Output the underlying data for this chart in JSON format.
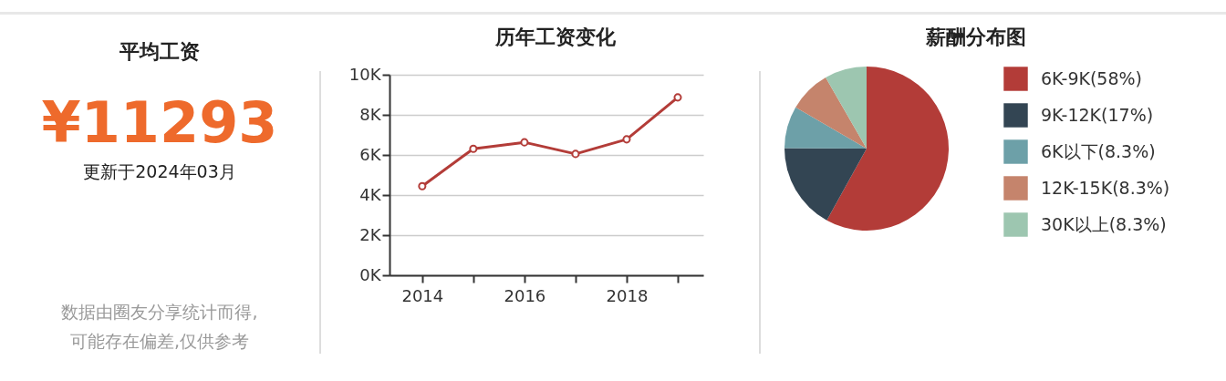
{
  "chart_data": [
    {
      "type": "other",
      "title": "平均工资",
      "annotations": [
        "¥11293",
        "更新于2024年03月",
        "数据由圈友分享统计而得,\n可能存在偏差,仅供参考"
      ]
    },
    {
      "type": "line",
      "title": "历年工资变化",
      "x": [
        2014,
        2015,
        2016,
        2017,
        2018,
        2019
      ],
      "series": [
        {
          "color": "#b33c38",
          "values": [
            4440,
            6310,
            6630,
            6050,
            6780,
            8870
          ]
        }
      ],
      "xlim": [
        2013.36,
        2019.5
      ],
      "xticks": [
        2014,
        {
          "value": 2015,
          "label": null
        },
        2016,
        {
          "value": 2017,
          "label": null
        },
        2018,
        {
          "value": 2019,
          "label": null
        }
      ],
      "ylim": [
        0,
        10000
      ],
      "yticks": [
        {
          "value": 0,
          "label": "0K"
        },
        {
          "value": 2000,
          "label": "2K"
        },
        {
          "value": 4000,
          "label": "4K"
        },
        {
          "value": 6000,
          "label": "6K"
        },
        {
          "value": 8000,
          "label": "8K"
        },
        {
          "value": 10000,
          "label": "10K"
        }
      ],
      "grid": "y",
      "marker": "circle",
      "line_style": "solid"
    },
    {
      "type": "pie",
      "title": "薪酬分布图",
      "categories": [
        "6K-9K(58%)",
        "9K-12K(17%)",
        "6K以下(8.3%)",
        "12K-15K(8.3%)",
        "30K以上(8.3%)"
      ],
      "values": [
        58,
        17,
        8.3,
        8.3,
        8.3
      ],
      "colors": [
        "#b33c38",
        "#334553",
        "#6da0a8",
        "#c5846c",
        "#9dc6b0"
      ],
      "legend": "right"
    }
  ]
}
